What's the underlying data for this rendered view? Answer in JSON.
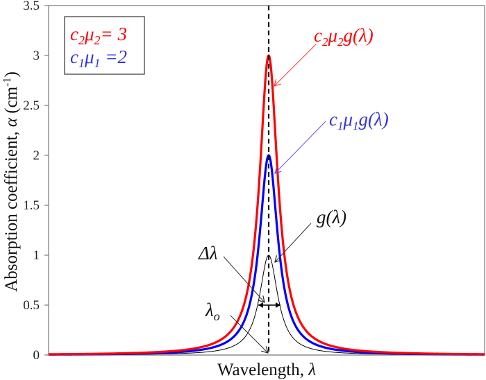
{
  "chart_data": {
    "type": "line",
    "title": "",
    "xlabel": "Wavelength, λ",
    "ylabel": "Absorption coefficient, α (cm⁻¹)",
    "ylabel_parts": {
      "text": "Absorption coefficient, ",
      "symbol": "α",
      "unit_open": " (cm",
      "unit_sup": "-1",
      "unit_close": ")"
    },
    "xlabel_parts": {
      "text": "Wavelength, ",
      "symbol": "λ"
    },
    "ylim": [
      0,
      3.5
    ],
    "yticks": [
      "0",
      "0.5",
      "1",
      "1.5",
      "2",
      "2.5",
      "3",
      "3.5"
    ],
    "ytick_values": [
      0,
      0.5,
      1,
      1.5,
      2,
      2.5,
      3,
      3.5
    ],
    "xlim": [
      -317,
      311
    ],
    "xticks": [],
    "grid": false,
    "center_wavelength": 0,
    "lorentz_half_width": 16,
    "x": [
      -317,
      -280,
      -240,
      -200,
      -170,
      -140,
      -120,
      -100,
      -85,
      -70,
      -60,
      -50,
      -42,
      -35,
      -28,
      -22,
      -16,
      -11,
      -7,
      -4,
      -2,
      0,
      2,
      4,
      7,
      11,
      16,
      22,
      28,
      35,
      42,
      50,
      60,
      70,
      85,
      100,
      120,
      140,
      170,
      200,
      240,
      280,
      311
    ],
    "series": [
      {
        "name": "c₂μ₂g(λ)",
        "color": "#ff0000",
        "scale": 3,
        "width": 3.2,
        "values": [
          0.008,
          0.01,
          0.013,
          0.019,
          0.026,
          0.038,
          0.052,
          0.074,
          0.102,
          0.148,
          0.198,
          0.279,
          0.381,
          0.519,
          0.743,
          1.038,
          1.5,
          2.034,
          2.52,
          2.813,
          2.953,
          3.0,
          2.953,
          2.813,
          2.52,
          2.034,
          1.5,
          1.038,
          0.743,
          0.519,
          0.381,
          0.279,
          0.198,
          0.148,
          0.102,
          0.074,
          0.052,
          0.038,
          0.026,
          0.019,
          0.013,
          0.01,
          0.008
        ]
      },
      {
        "name": "c₁μ₁g(λ)",
        "color": "#0000ff",
        "scale": 2,
        "width": 3.2,
        "values": [
          0.005,
          0.007,
          0.009,
          0.013,
          0.018,
          0.025,
          0.035,
          0.049,
          0.068,
          0.099,
          0.132,
          0.186,
          0.254,
          0.346,
          0.495,
          0.692,
          1.0,
          1.356,
          1.68,
          1.876,
          1.969,
          2.0,
          1.969,
          1.876,
          1.68,
          1.356,
          1.0,
          0.692,
          0.495,
          0.346,
          0.254,
          0.186,
          0.132,
          0.099,
          0.068,
          0.049,
          0.035,
          0.025,
          0.018,
          0.013,
          0.009,
          0.007,
          0.005
        ]
      },
      {
        "name": "g(λ)",
        "color": "#000000",
        "scale": 1,
        "width": 1,
        "values": [
          0.003,
          0.003,
          0.004,
          0.006,
          0.009,
          0.013,
          0.017,
          0.025,
          0.034,
          0.05,
          0.066,
          0.093,
          0.127,
          0.173,
          0.246,
          0.346,
          0.5,
          0.678,
          0.84,
          0.938,
          0.984,
          1.0,
          0.984,
          0.938,
          0.84,
          0.678,
          0.5,
          0.346,
          0.246,
          0.173,
          0.127,
          0.093,
          0.066,
          0.05,
          0.034,
          0.025,
          0.017,
          0.013,
          0.009,
          0.006,
          0.004,
          0.003,
          0.003
        ]
      }
    ],
    "legend": {
      "position": "upper-left",
      "entries": [
        {
          "lhs": "c₂μ₂",
          "rhs": "= 3",
          "color": "#ff0000"
        },
        {
          "lhs": "c₁μ₁",
          "rhs": "=2",
          "color": "#3333dd"
        }
      ]
    },
    "annotations": [
      {
        "label": "c₂μ₂g(λ)",
        "color": "#ff0000",
        "points_to": "red peak flank"
      },
      {
        "label": "c₁μ₁g(λ)",
        "color": "#3333dd",
        "points_to": "blue peak flank"
      },
      {
        "label": "g(λ)",
        "color": "#000000",
        "points_to": "black peak flank"
      },
      {
        "label": "Δλ",
        "color": "#000000",
        "points_to": "FWHM double arrow at α = 0.5"
      },
      {
        "label": "λo",
        "color": "#000000",
        "points_to": "center wavelength at baseline"
      }
    ],
    "vertical_line": {
      "x": 0,
      "style": "dashed",
      "color": "#000000"
    }
  },
  "legend_text": {
    "red": {
      "c": "c",
      "sub1": "2",
      "mu": "μ",
      "sub2": "2",
      "eq": "= 3"
    },
    "blue": {
      "c": "c",
      "sub1": "1",
      "mu": "μ",
      "sub2": "1",
      "eq": " =2"
    }
  },
  "annotation_text": {
    "red": {
      "c": "c",
      "sub1": "2",
      "mu": "μ",
      "sub2": "2",
      "rest": "g(λ)"
    },
    "blue": {
      "c": "c",
      "sub1": "1",
      "mu": "μ",
      "sub2": "1",
      "rest": "g(λ)"
    },
    "black": "g(λ)",
    "delta": "Δλ",
    "lambda0": {
      "main": "λ",
      "sub": "o"
    }
  }
}
